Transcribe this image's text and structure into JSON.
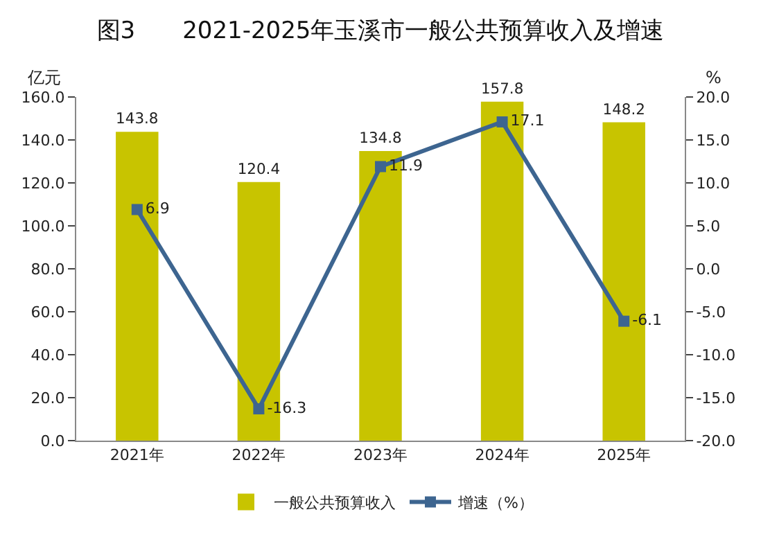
{
  "chart_data": {
    "type": "bar",
    "title": "图3　　2021-2025年玉溪市一般公共预算收入及增速",
    "ylabel": "亿元",
    "y2label": "%",
    "categories": [
      "2021年",
      "2022年",
      "2023年",
      "2024年",
      "2025年"
    ],
    "series": [
      {
        "name": "一般公共预算收入",
        "color": "#c8c400",
        "values": [
          143.8,
          120.4,
          134.8,
          157.8,
          148.2
        ]
      },
      {
        "name": "增速（%）",
        "type": "line",
        "axis": "y2",
        "color": "#3d6590",
        "marker": "square",
        "values": [
          6.9,
          -16.3,
          11.9,
          17.1,
          -6.1
        ]
      }
    ],
    "ylim": [
      0,
      160
    ],
    "yticks": [
      {
        "value": 0,
        "label": "0.0"
      },
      {
        "value": 20,
        "label": "20.0"
      },
      {
        "value": 40,
        "label": "40.0"
      },
      {
        "value": 60,
        "label": "60.0"
      },
      {
        "value": 80,
        "label": "80.0"
      },
      {
        "value": 100,
        "label": "100.0"
      },
      {
        "value": 120,
        "label": "120.0"
      },
      {
        "value": 140,
        "label": "140.0"
      },
      {
        "value": 160,
        "label": "160.0"
      }
    ],
    "y2lim": [
      -20,
      20
    ],
    "y2ticks": [
      {
        "value": -20,
        "label": "-20.0"
      },
      {
        "value": -15,
        "label": "-15.0"
      },
      {
        "value": -10,
        "label": "-10.0"
      },
      {
        "value": -5,
        "label": "-5.0"
      },
      {
        "value": 0,
        "label": "0.0"
      },
      {
        "value": 5,
        "label": "5.0"
      },
      {
        "value": 10,
        "label": "10.0"
      },
      {
        "value": 15,
        "label": "15.0"
      },
      {
        "value": 20,
        "label": "20.0"
      }
    ],
    "data_labels": true,
    "grid": false,
    "legend": "bottom"
  }
}
